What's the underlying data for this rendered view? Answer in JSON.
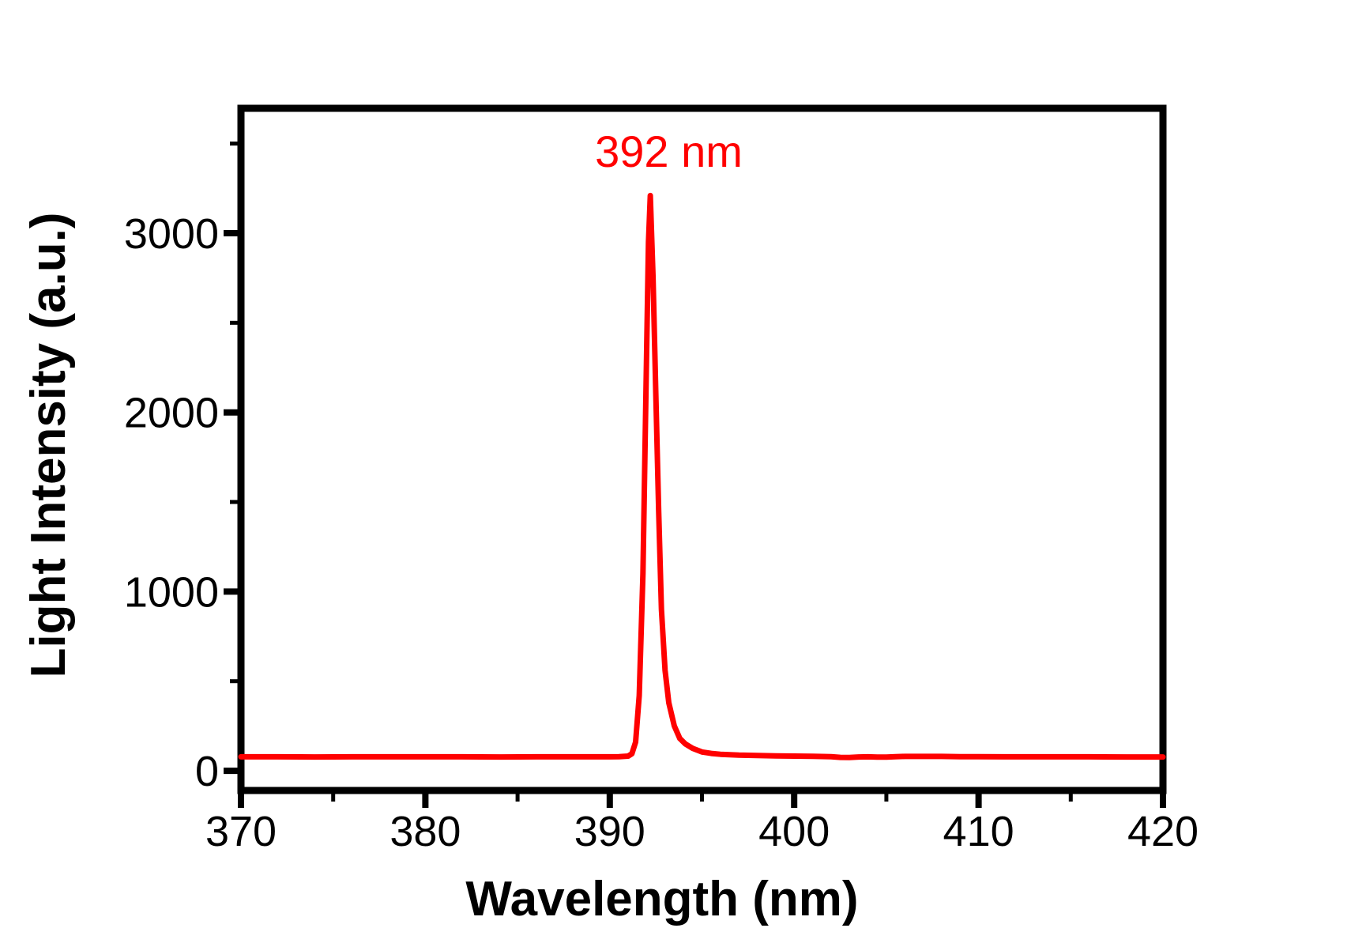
{
  "figure": {
    "background": "#ffffff",
    "axis_color": "#000000"
  },
  "chart_data": {
    "type": "line",
    "title": "",
    "xlabel": "Wavelength (nm)",
    "ylabel": "Light Intensity (a.u.)",
    "xlim": [
      370,
      420
    ],
    "ylim": [
      -110,
      3697
    ],
    "x_major_ticks": [
      370,
      380,
      390,
      400,
      410,
      420
    ],
    "x_minor_ticks": [
      375,
      385,
      395,
      405,
      415
    ],
    "y_major_ticks": [
      0,
      1000,
      2000,
      3000
    ],
    "y_minor_ticks": [
      500,
      1500,
      2500,
      3500
    ],
    "grid": false,
    "legend": false,
    "annotation": {
      "text": "392 nm",
      "x": 393.2,
      "y": 3370,
      "color": "#ff0000"
    },
    "peak": {
      "wavelength_nm": 392.2,
      "intensity_au": 3210,
      "baseline_au": 78
    },
    "series": [
      {
        "name": "emission spectrum",
        "color": "#ff0000",
        "line_width": 7,
        "points": [
          [
            370,
            78
          ],
          [
            372,
            78
          ],
          [
            374,
            77
          ],
          [
            376,
            78
          ],
          [
            378,
            78
          ],
          [
            380,
            78
          ],
          [
            382,
            78
          ],
          [
            384,
            77
          ],
          [
            386,
            78
          ],
          [
            388,
            78
          ],
          [
            389,
            78
          ],
          [
            390,
            78
          ],
          [
            390.5,
            79
          ],
          [
            391.0,
            82
          ],
          [
            391.2,
            95
          ],
          [
            391.4,
            160
          ],
          [
            391.6,
            420
          ],
          [
            391.8,
            1100
          ],
          [
            392.0,
            2350
          ],
          [
            392.1,
            2950
          ],
          [
            392.2,
            3210
          ],
          [
            392.35,
            2750
          ],
          [
            392.5,
            2100
          ],
          [
            392.65,
            1450
          ],
          [
            392.8,
            900
          ],
          [
            393.0,
            560
          ],
          [
            393.2,
            380
          ],
          [
            393.5,
            250
          ],
          [
            393.8,
            180
          ],
          [
            394.1,
            150
          ],
          [
            394.5,
            125
          ],
          [
            395.0,
            105
          ],
          [
            395.5,
            97
          ],
          [
            396.0,
            92
          ],
          [
            397.0,
            87
          ],
          [
            398.0,
            85
          ],
          [
            399.0,
            83
          ],
          [
            400.0,
            82
          ],
          [
            401.0,
            81
          ],
          [
            402.0,
            79
          ],
          [
            402.5,
            75
          ],
          [
            403.0,
            74
          ],
          [
            403.5,
            77
          ],
          [
            404.0,
            78
          ],
          [
            404.5,
            76
          ],
          [
            405.0,
            76
          ],
          [
            405.5,
            79
          ],
          [
            406.0,
            80
          ],
          [
            407.0,
            80
          ],
          [
            408.0,
            80
          ],
          [
            409.0,
            79
          ],
          [
            410.0,
            79
          ],
          [
            412.0,
            78
          ],
          [
            414.0,
            78
          ],
          [
            416.0,
            78
          ],
          [
            418.0,
            77
          ],
          [
            420.0,
            77
          ]
        ]
      }
    ]
  }
}
